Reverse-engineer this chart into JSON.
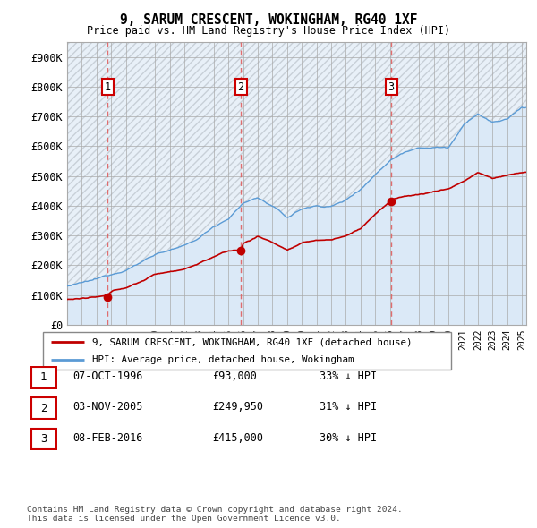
{
  "title": "9, SARUM CRESCENT, WOKINGHAM, RG40 1XF",
  "subtitle": "Price paid vs. HM Land Registry's House Price Index (HPI)",
  "xlim_start": 1994.0,
  "xlim_end": 2025.3,
  "ylim": [
    0,
    950000
  ],
  "yticks": [
    0,
    100000,
    200000,
    300000,
    400000,
    500000,
    600000,
    700000,
    800000,
    900000
  ],
  "ytick_labels": [
    "£0",
    "£100K",
    "£200K",
    "£300K",
    "£400K",
    "£500K",
    "£600K",
    "£700K",
    "£800K",
    "£900K"
  ],
  "sale_dates": [
    1996.77,
    2005.84,
    2016.1
  ],
  "sale_prices": [
    93000,
    249950,
    415000
  ],
  "sale_labels": [
    "1",
    "2",
    "3"
  ],
  "hpi_color": "#5b9bd5",
  "hpi_fill_color": "#dbe9f7",
  "price_color": "#c00000",
  "vline_color": "#e06060",
  "label_box_color": "#cc0000",
  "bg_light_blue": "#e8f0f8",
  "hatch_color": "#c8d0d8",
  "legend_label_price": "9, SARUM CRESCENT, WOKINGHAM, RG40 1XF (detached house)",
  "legend_label_hpi": "HPI: Average price, detached house, Wokingham",
  "table_rows": [
    [
      "1",
      "07-OCT-1996",
      "£93,000",
      "33% ↓ HPI"
    ],
    [
      "2",
      "03-NOV-2005",
      "£249,950",
      "31% ↓ HPI"
    ],
    [
      "3",
      "08-FEB-2016",
      "£415,000",
      "30% ↓ HPI"
    ]
  ],
  "footnote": "Contains HM Land Registry data © Crown copyright and database right 2024.\nThis data is licensed under the Open Government Licence v3.0.",
  "hpi_anchors_year": [
    1994,
    1995,
    1996,
    1997,
    1998,
    1999,
    2000,
    2001,
    2002,
    2003,
    2004,
    2005,
    2006,
    2007,
    2008,
    2009,
    2010,
    2011,
    2012,
    2013,
    2014,
    2015,
    2016,
    2017,
    2018,
    2019,
    2020,
    2021,
    2022,
    2023,
    2024,
    2025
  ],
  "hpi_anchors_price": [
    130000,
    138000,
    148000,
    165000,
    185000,
    210000,
    240000,
    255000,
    265000,
    290000,
    330000,
    360000,
    410000,
    430000,
    400000,
    360000,
    390000,
    400000,
    400000,
    420000,
    460000,
    510000,
    560000,
    590000,
    610000,
    610000,
    610000,
    680000,
    720000,
    690000,
    700000,
    740000
  ],
  "price_anchors_year": [
    1994,
    1995,
    1996,
    1996.77,
    1997,
    1998,
    1999,
    2000,
    2001,
    2002,
    2003,
    2004,
    2005,
    2005.84,
    2006,
    2007,
    2008,
    2009,
    2010,
    2011,
    2012,
    2013,
    2014,
    2015,
    2016,
    2016.1,
    2017,
    2018,
    2019,
    2020,
    2021,
    2022,
    2023,
    2024,
    2025
  ],
  "price_anchors_price": [
    85000,
    88000,
    90000,
    93000,
    105000,
    120000,
    140000,
    165000,
    175000,
    185000,
    205000,
    228000,
    245000,
    249950,
    270000,
    295000,
    275000,
    250000,
    270000,
    280000,
    282000,
    295000,
    320000,
    370000,
    410000,
    415000,
    430000,
    435000,
    445000,
    455000,
    480000,
    510000,
    490000,
    500000,
    510000
  ]
}
